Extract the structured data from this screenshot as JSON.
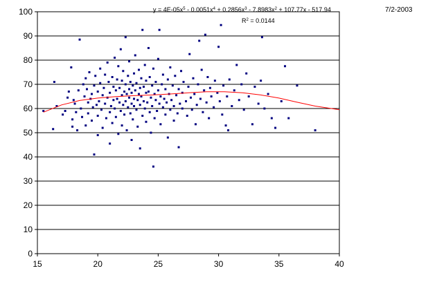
{
  "date_stamp": "7/2-2003",
  "chart_data": {
    "type": "scatter",
    "xlim": [
      15,
      40
    ],
    "ylim": [
      0,
      100
    ],
    "x_ticks": [
      15,
      20,
      25,
      30,
      35,
      40
    ],
    "y_ticks": [
      0,
      10,
      20,
      30,
      40,
      50,
      60,
      70,
      80,
      90,
      100
    ],
    "grid": "horizontal",
    "point_color": "#000080",
    "trendline_color": "#ff0000",
    "trendline": {
      "type": "polynomial",
      "order": 5,
      "equation_parts": {
        "p1": "y = 4E-05x",
        "e1": "5",
        "p2": " - 0.0051x",
        "e2": "4",
        "p3": " + 0.2856x",
        "e3": "3",
        "p4": " - 7.8983x",
        "e4": "2",
        "p5": " + 107.77x - 517.94"
      },
      "r2_parts": {
        "p1": "R",
        "e1": "2",
        "p2": " = 0.0144"
      },
      "x": [
        15.5,
        17,
        18.5,
        20,
        21.5,
        23,
        24.5,
        26,
        27.5,
        29,
        30.5,
        32,
        33.5,
        35,
        36.5,
        38,
        40
      ],
      "y": [
        58.5,
        61.5,
        63.3,
        64.3,
        64.9,
        65.3,
        65.6,
        66,
        66.5,
        66.9,
        66.9,
        66.5,
        65.6,
        64.3,
        62.6,
        61,
        59.5
      ]
    },
    "points": [
      [
        15.5,
        59
      ],
      [
        16.3,
        51.5
      ],
      [
        16.4,
        71
      ],
      [
        16.6,
        61
      ],
      [
        17.1,
        57.5
      ],
      [
        17.3,
        59
      ],
      [
        17.5,
        64.5
      ],
      [
        17.6,
        67
      ],
      [
        17.8,
        77
      ],
      [
        17.9,
        55.5
      ],
      [
        17.9,
        52.5
      ],
      [
        18,
        63.5
      ],
      [
        18.1,
        62
      ],
      [
        18.2,
        58.5
      ],
      [
        18.3,
        51
      ],
      [
        18.4,
        67.5
      ],
      [
        18.5,
        88.5
      ],
      [
        18.6,
        60
      ],
      [
        18.7,
        56.5
      ],
      [
        18.8,
        70
      ],
      [
        18.9,
        65
      ],
      [
        19,
        72.5
      ],
      [
        19,
        53
      ],
      [
        19.1,
        68
      ],
      [
        19.2,
        62.5
      ],
      [
        19.2,
        58
      ],
      [
        19.3,
        75
      ],
      [
        19.4,
        64
      ],
      [
        19.5,
        66
      ],
      [
        19.5,
        55
      ],
      [
        19.6,
        60.5
      ],
      [
        19.7,
        69.5
      ],
      [
        19.7,
        41
      ],
      [
        19.8,
        73.5
      ],
      [
        19.9,
        61.5
      ],
      [
        20,
        67
      ],
      [
        20,
        57
      ],
      [
        20,
        49
      ],
      [
        20.1,
        63
      ],
      [
        20.2,
        76.5
      ],
      [
        20.2,
        70.5
      ],
      [
        20.3,
        59.5
      ],
      [
        20.4,
        65.5
      ],
      [
        20.4,
        52
      ],
      [
        20.5,
        68.5
      ],
      [
        20.6,
        62
      ],
      [
        20.6,
        74
      ],
      [
        20.7,
        56
      ],
      [
        20.8,
        79
      ],
      [
        20.8,
        64.5
      ],
      [
        20.9,
        71
      ],
      [
        21,
        58.5
      ],
      [
        21,
        66.5
      ],
      [
        21,
        45.5
      ],
      [
        21.1,
        61
      ],
      [
        21.2,
        73
      ],
      [
        21.2,
        54
      ],
      [
        21.3,
        69
      ],
      [
        21.3,
        63.5
      ],
      [
        21.4,
        81
      ],
      [
        21.4,
        60
      ],
      [
        21.5,
        67.5
      ],
      [
        21.5,
        56.5
      ],
      [
        21.6,
        72
      ],
      [
        21.6,
        64
      ],
      [
        21.7,
        49.5
      ],
      [
        21.7,
        77.5
      ],
      [
        21.8,
        62.5
      ],
      [
        21.8,
        68.5
      ],
      [
        21.9,
        59
      ],
      [
        21.9,
        84.5
      ],
      [
        22,
        65.5
      ],
      [
        22,
        71.5
      ],
      [
        22,
        53
      ],
      [
        22.1,
        61.5
      ],
      [
        22.1,
        75.5
      ],
      [
        22.2,
        67
      ],
      [
        22.2,
        57.5
      ],
      [
        22.3,
        63
      ],
      [
        22.3,
        70
      ],
      [
        22.3,
        89.5
      ],
      [
        22.4,
        66
      ],
      [
        22.4,
        51
      ],
      [
        22.5,
        73.5
      ],
      [
        22.5,
        60.5
      ],
      [
        22.6,
        68
      ],
      [
        22.6,
        64.5
      ],
      [
        22.6,
        79.5
      ],
      [
        22.7,
        58
      ],
      [
        22.7,
        71
      ],
      [
        22.8,
        62
      ],
      [
        22.8,
        66.5
      ],
      [
        22.8,
        47
      ],
      [
        22.9,
        69.5
      ],
      [
        22.9,
        55.5
      ],
      [
        23,
        64
      ],
      [
        23,
        74.5
      ],
      [
        23,
        61
      ],
      [
        23.1,
        67.5
      ],
      [
        23.1,
        82
      ],
      [
        23.2,
        59.5
      ],
      [
        23.2,
        70.5
      ],
      [
        23.3,
        63.5
      ],
      [
        23.3,
        52.5
      ],
      [
        23.4,
        66
      ],
      [
        23.4,
        76
      ],
      [
        23.5,
        61.5
      ],
      [
        23.5,
        68.5
      ],
      [
        23.5,
        43.5
      ],
      [
        23.6,
        65
      ],
      [
        23.6,
        72.5
      ],
      [
        23.7,
        57
      ],
      [
        23.7,
        92.5
      ],
      [
        23.8,
        63
      ],
      [
        23.8,
        69
      ],
      [
        23.9,
        60
      ],
      [
        23.9,
        78
      ],
      [
        24,
        66.5
      ],
      [
        24,
        54.5
      ],
      [
        24,
        71.5
      ],
      [
        24.1,
        62.5
      ],
      [
        24.2,
        67
      ],
      [
        24.2,
        85
      ],
      [
        24.3,
        58.5
      ],
      [
        24.3,
        73
      ],
      [
        24.4,
        64.5
      ],
      [
        24.4,
        50
      ],
      [
        24.5,
        69.5
      ],
      [
        24.5,
        61
      ],
      [
        24.6,
        36
      ],
      [
        24.6,
        76.5
      ],
      [
        24.7,
        66
      ],
      [
        24.7,
        56
      ],
      [
        24.8,
        63.5
      ],
      [
        24.8,
        71
      ],
      [
        24.9,
        59
      ],
      [
        25,
        67.5
      ],
      [
        25,
        80.5
      ],
      [
        25.1,
        62
      ],
      [
        25.1,
        92.5
      ],
      [
        25.2,
        65
      ],
      [
        25.2,
        53.5
      ],
      [
        25.3,
        70
      ],
      [
        25.4,
        60.5
      ],
      [
        25.4,
        74
      ],
      [
        25.5,
        64
      ],
      [
        25.6,
        68
      ],
      [
        25.6,
        57.5
      ],
      [
        25.7,
        62.5
      ],
      [
        25.8,
        72
      ],
      [
        25.8,
        48
      ],
      [
        25.9,
        66
      ],
      [
        26,
        59.5
      ],
      [
        26,
        77
      ],
      [
        26.1,
        63.5
      ],
      [
        26.2,
        69.5
      ],
      [
        26.3,
        55
      ],
      [
        26.3,
        61
      ],
      [
        26.4,
        73.5
      ],
      [
        26.5,
        65.5
      ],
      [
        26.6,
        58
      ],
      [
        26.7,
        44
      ],
      [
        26.7,
        68
      ],
      [
        26.8,
        62
      ],
      [
        26.9,
        75.5
      ],
      [
        27,
        60
      ],
      [
        27,
        66.5
      ],
      [
        27.1,
        71
      ],
      [
        27.3,
        63
      ],
      [
        27.4,
        57
      ],
      [
        27.5,
        69
      ],
      [
        27.6,
        82.5
      ],
      [
        27.7,
        64.5
      ],
      [
        27.8,
        59.5
      ],
      [
        27.9,
        72.5
      ],
      [
        28,
        66
      ],
      [
        28.1,
        53.5
      ],
      [
        28.2,
        61.5
      ],
      [
        28.3,
        70
      ],
      [
        28.4,
        88
      ],
      [
        28.5,
        64
      ],
      [
        28.6,
        76
      ],
      [
        28.7,
        58.5
      ],
      [
        28.8,
        67.5
      ],
      [
        28.9,
        90.5
      ],
      [
        29,
        62.5
      ],
      [
        29.1,
        73
      ],
      [
        29.2,
        56
      ],
      [
        29.3,
        68.5
      ],
      [
        29.4,
        65
      ],
      [
        29.6,
        60.5
      ],
      [
        29.7,
        71.5
      ],
      [
        29.9,
        66.5
      ],
      [
        30,
        85.5
      ],
      [
        30.1,
        63
      ],
      [
        30.2,
        94.5
      ],
      [
        30.3,
        57.5
      ],
      [
        30.4,
        69.5
      ],
      [
        30.6,
        53
      ],
      [
        30.7,
        65
      ],
      [
        30.8,
        51
      ],
      [
        30.9,
        72
      ],
      [
        31.1,
        61
      ],
      [
        31.3,
        67.5
      ],
      [
        31.5,
        78
      ],
      [
        31.7,
        63.5
      ],
      [
        31.9,
        70
      ],
      [
        32.1,
        59.5
      ],
      [
        32.3,
        74.5
      ],
      [
        32.5,
        65
      ],
      [
        32.8,
        53.5
      ],
      [
        33,
        69
      ],
      [
        33.3,
        62
      ],
      [
        33.5,
        71.5
      ],
      [
        33.6,
        89.5
      ],
      [
        33.8,
        60
      ],
      [
        34.1,
        66
      ],
      [
        34.4,
        56
      ],
      [
        34.7,
        52
      ],
      [
        35.2,
        63
      ],
      [
        35.5,
        77.5
      ],
      [
        35.8,
        56
      ],
      [
        36.5,
        69.5
      ],
      [
        38,
        51
      ]
    ]
  }
}
